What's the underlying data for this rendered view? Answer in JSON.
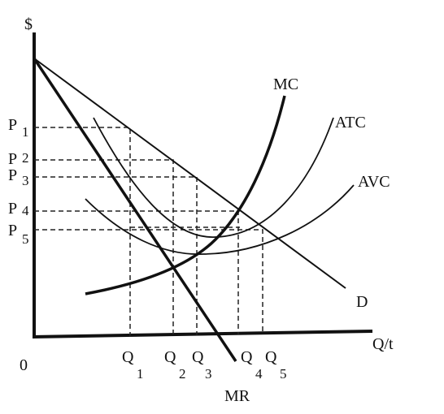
{
  "axes": {
    "y_label": "$",
    "x_label": "Q/t",
    "origin": "0"
  },
  "curves": {
    "mc": "MC",
    "atc": "ATC",
    "avc": "AVC",
    "demand": "D",
    "mr": "MR"
  },
  "prices": [
    {
      "symbol": "P",
      "subscript": "1"
    },
    {
      "symbol": "P",
      "subscript": "2"
    },
    {
      "symbol": "P",
      "subscript": "3"
    },
    {
      "symbol": "P",
      "subscript": "4"
    },
    {
      "symbol": "P",
      "subscript": "5"
    }
  ],
  "quantities": [
    {
      "symbol": "Q",
      "subscript": "1"
    },
    {
      "symbol": "Q",
      "subscript": "2"
    },
    {
      "symbol": "Q",
      "subscript": "3"
    },
    {
      "symbol": "Q",
      "subscript": "4"
    },
    {
      "symbol": "Q",
      "subscript": "5"
    }
  ]
}
